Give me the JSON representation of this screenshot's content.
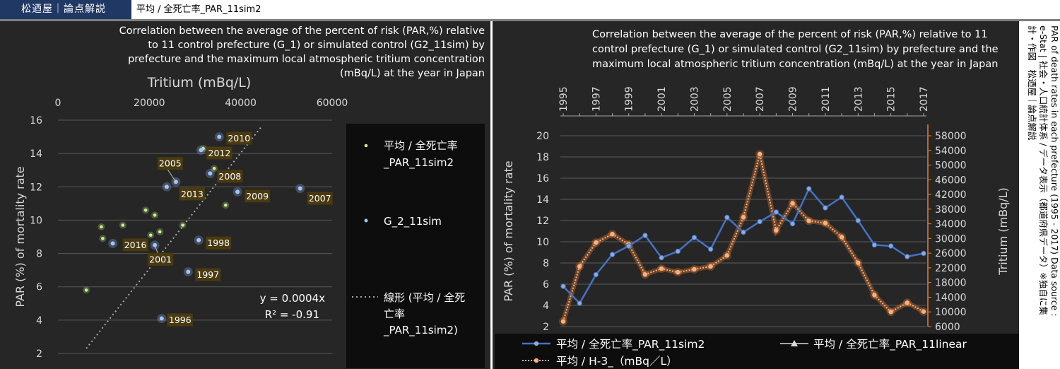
{
  "header": {
    "brand": "松迺屋｜論点解説",
    "sheet_title": "平均 / 全死亡率_PAR_11sim2"
  },
  "source_note": {
    "line1": "PAR of death rates in each prefecture (1995 - 2017) Data source :",
    "line2": "e-Stat | 社会・人口統計体系 / データ表示（都道府県データ）※独自に集",
    "line3": "計・作図　松迺屋｜論点解説"
  },
  "colors": {
    "panel_bg": "#262626",
    "series_blue": "#4472c4",
    "point_green": "#c8f08c",
    "tritium_orange": "#f4b183",
    "axis_orange": "#ed7d31",
    "label_box": "#4a3a10"
  },
  "chart_data": [
    {
      "type": "scatter",
      "title_lines": [
        "Correlation between the average of the percent of risk (PAR,%)  relative",
        "to 11 control prefecture (G_1) or simulated control (G2_11sim)  by",
        "prefecture and the maximum local atmospheric tritium concentration",
        "(mBq/L) at the year in Japan"
      ],
      "xlabel": "Tritium (mBq/L)",
      "ylabel": "PAR (%) of mortality rate",
      "xlim": [
        0,
        60000
      ],
      "ylim": [
        2,
        16
      ],
      "x_ticks": [
        0,
        20000,
        40000,
        60000
      ],
      "x_tick_labels": [
        "0",
        "20000",
        "40000",
        "60000"
      ],
      "y_ticks": [
        2,
        4,
        6,
        8,
        10,
        12,
        14,
        16
      ],
      "y_tick_labels": [
        "2",
        "4",
        "6",
        "8",
        "10",
        "12",
        "14",
        "16"
      ],
      "x_axis_position": "top",
      "grid": "horizontal",
      "equation": "y = 0.0004x",
      "r_squared": "R² = -0.91",
      "legend_position": "right",
      "legend": [
        {
          "name": "平均 / 全死亡率_PAR_11sim2",
          "marker": "green-dot"
        },
        {
          "name": "G_2_11sim",
          "marker": "blue-dot"
        },
        {
          "name": "線形 (平均 / 全死亡率_PAR_11sim2)",
          "marker": "dotted-line"
        }
      ],
      "series": [
        {
          "name": "平均 / 全死亡率_PAR_11sim2",
          "points": [
            [
              6200,
              5.8
            ],
            [
              9500,
              9.6
            ],
            [
              9800,
              8.9
            ],
            [
              14200,
              9.7
            ],
            [
              19200,
              10.6
            ],
            [
              20300,
              9.1
            ],
            [
              21200,
              10.3
            ],
            [
              22300,
              9.3
            ],
            [
              27300,
              9.7
            ],
            [
              31800,
              14.3
            ],
            [
              34200,
              13.1
            ],
            [
              36700,
              10.9
            ]
          ]
        },
        {
          "name": "G_2_11sim",
          "points": [
            [
              12000,
              8.6
            ],
            [
              21200,
              8.5
            ],
            [
              22700,
              4.1
            ],
            [
              23800,
              12.0
            ],
            [
              25800,
              12.3
            ],
            [
              28500,
              6.9
            ],
            [
              30800,
              8.8
            ],
            [
              33300,
              12.8
            ],
            [
              31300,
              14.2
            ],
            [
              35300,
              15.0
            ],
            [
              39300,
              11.7
            ],
            [
              53000,
              11.9
            ]
          ],
          "labels": [
            "2016",
            "2001",
            "1996",
            "2013",
            "2005",
            "1997",
            "1998",
            "2008",
            "2012",
            "2010",
            "2009",
            "2007"
          ]
        }
      ],
      "trendline": {
        "x": [
          6200,
          44500
        ],
        "y": [
          2.3,
          15.6
        ]
      }
    },
    {
      "type": "line",
      "title_lines": [
        "Correlation between the average of the percent of risk (PAR,%)  relative to 11",
        "control prefecture (G_1) or simulated control (G2_11sim)  by prefecture and the",
        "maximum local atmospheric tritium concentration (mBq/L) at the year in Japan"
      ],
      "categories": [
        "1995",
        "1996",
        "1997",
        "1998",
        "1999",
        "2000",
        "2001",
        "2002",
        "2003",
        "2004",
        "2005",
        "2006",
        "2007",
        "2008",
        "2009",
        "2010",
        "2011",
        "2012",
        "2013",
        "2014",
        "2015",
        "2016",
        "2017"
      ],
      "x_tick_labels": [
        "1995",
        "1997",
        "1999",
        "2001",
        "2003",
        "2005",
        "2007",
        "2009",
        "2011",
        "2013",
        "2015",
        "2017"
      ],
      "ylabel": "PAR (%) of mortality rate",
      "y2label": "Tritium (mBq/L)",
      "ylim": [
        2,
        20
      ],
      "y_ticks": [
        2,
        4,
        6,
        8,
        10,
        12,
        14,
        16,
        18,
        20
      ],
      "y_tick_labels": [
        "2",
        "4",
        "6",
        "8",
        "10",
        "12",
        "14",
        "16",
        "18",
        "20"
      ],
      "y2lim": [
        6000,
        58000
      ],
      "y2_ticks": [
        6000,
        10000,
        14000,
        18000,
        22000,
        26000,
        30000,
        34000,
        38000,
        42000,
        46000,
        50000,
        54000,
        58000
      ],
      "y2_tick_labels": [
        "6000",
        "10000",
        "14000",
        "18000",
        "22000",
        "26000",
        "30000",
        "34000",
        "38000",
        "42000",
        "46000",
        "50000",
        "54000",
        "58000"
      ],
      "x_axis_position": "top",
      "grid": "horizontal",
      "legend_position": "bottom",
      "legend": [
        {
          "name": "平均 / 全死亡率_PAR_11sim2",
          "marker": "blue-line-dot"
        },
        {
          "name": "平均 / 全死亡率_PAR_11linear",
          "marker": "gray-line-triangle"
        },
        {
          "name": "平均 / H-3_（mBq／L）",
          "marker": "orange-dotted-dot"
        }
      ],
      "series": [
        {
          "name": "平均 / 全死亡率_PAR_11sim2",
          "axis": "left",
          "values": [
            5.8,
            4.2,
            6.9,
            8.8,
            9.6,
            10.6,
            8.5,
            9.1,
            10.4,
            9.3,
            12.3,
            10.9,
            11.9,
            12.8,
            11.7,
            15.0,
            13.2,
            14.2,
            12.0,
            9.7,
            9.6,
            8.6,
            8.9
          ]
        },
        {
          "name": "平均 / H-3_（mBq／L）",
          "axis": "right",
          "values": [
            7400,
            22400,
            28900,
            31200,
            28400,
            20200,
            21800,
            20800,
            21600,
            22400,
            25400,
            35800,
            53000,
            32200,
            39600,
            34800,
            34200,
            30400,
            23400,
            14600,
            10000,
            12500,
            10100
          ]
        }
      ]
    }
  ]
}
